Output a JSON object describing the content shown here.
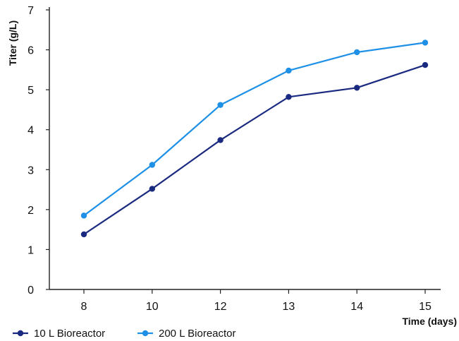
{
  "chart_data": {
    "type": "line",
    "title": "",
    "xlabel": "Time (days)",
    "ylabel": "Titer (g/L)",
    "categories": [
      "8",
      "10",
      "12",
      "13",
      "14",
      "15"
    ],
    "ylim": [
      0,
      7
    ],
    "yticks": [
      0,
      1,
      2,
      3,
      4,
      5,
      6,
      7
    ],
    "grid": false,
    "legend_position": "bottom-left",
    "series": [
      {
        "name": "10 L Bioreactor",
        "color": "#1a2a80",
        "values": [
          1.38,
          2.52,
          3.74,
          4.82,
          5.05,
          5.62
        ]
      },
      {
        "name": "200 L Bioreactor",
        "color": "#1e90e6",
        "values": [
          1.85,
          3.12,
          4.62,
          5.48,
          5.94,
          6.18
        ]
      }
    ]
  }
}
